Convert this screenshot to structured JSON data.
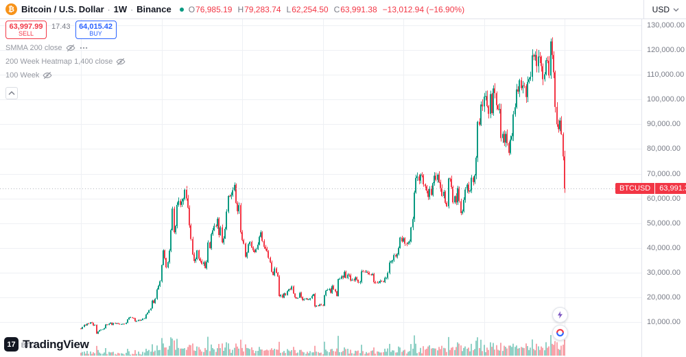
{
  "header": {
    "symbol": "Bitcoin / U.S. Dollar",
    "separator": "·",
    "interval": "1W",
    "exchange": "Binance",
    "ohlc": {
      "open_label": "O",
      "open": "76,985.19",
      "high_label": "H",
      "high": "79,283.74",
      "low_label": "L",
      "low": "62,254.50",
      "close_label": "C",
      "close": "63,991.38",
      "change": "−13,012.94 (−16.90%)"
    },
    "currency": "USD"
  },
  "trade_panel": {
    "sell_price": "63,997.99",
    "sell_label": "SELL",
    "spread": "17.43",
    "buy_price": "64,015.42",
    "buy_label": "BUY"
  },
  "indicators": [
    {
      "label": "SMMA 200 close"
    },
    {
      "label": "200 Week Heatmap 1,400 close"
    },
    {
      "label": "100 Week"
    }
  ],
  "price_axis": {
    "current": {
      "symbol": "BTCUSD",
      "price": "63,991.38"
    },
    "ticks": [
      {
        "value": 130000,
        "label": "130,000.00"
      },
      {
        "value": 120000,
        "label": "120,000.00"
      },
      {
        "value": 110000,
        "label": "110,000.00"
      },
      {
        "value": 100000,
        "label": "100,000.00"
      },
      {
        "value": 90000,
        "label": "90,000.00"
      },
      {
        "value": 80000,
        "label": "80,000.00"
      },
      {
        "value": 70000,
        "label": "70,000.00"
      },
      {
        "value": 60000,
        "label": "60,000.00"
      },
      {
        "value": 50000,
        "label": "50,000.00"
      },
      {
        "value": 40000,
        "label": "40,000.00"
      },
      {
        "value": 30000,
        "label": "30,000.00"
      },
      {
        "value": 20000,
        "label": "20,000.00"
      },
      {
        "value": 10000,
        "label": "10,000.00"
      }
    ]
  },
  "watermark": {
    "logo_mark": "17",
    "logo_text": "TradingView",
    "volume_label": "Vol · BTC"
  },
  "chart_data": {
    "type": "candlestick",
    "title": "BTCUSD · 1W · Binance",
    "interval": "1W",
    "up_color": "#089981",
    "down_color": "#f23645",
    "grid": true,
    "legend_position": "top-left",
    "y_axis": {
      "min": 10000,
      "max": 130000,
      "tick_step": 10000
    },
    "current_price": 63991.38,
    "current_candle": {
      "open": 76985.19,
      "high": 79283.74,
      "low": 62254.5,
      "close": 63991.38
    },
    "weekly_closes": [
      7200,
      8000,
      8900,
      8600,
      9400,
      9300,
      9900,
      9600,
      8600,
      8900,
      5300,
      6200,
      6700,
      6900,
      7100,
      7500,
      9000,
      8800,
      9300,
      9700,
      8800,
      9600,
      9400,
      9500,
      9300,
      9100,
      9200,
      9300,
      9200,
      9700,
      11100,
      11800,
      11900,
      11700,
      11500,
      10300,
      10400,
      10900,
      10700,
      10800,
      11400,
      11500,
      13100,
      13800,
      14800,
      15500,
      18700,
      17700,
      19400,
      23200,
      24700,
      26500,
      33100,
      39000,
      35800,
      32100,
      34300,
      38900,
      47200,
      55900,
      46300,
      48900,
      57400,
      59000,
      57400,
      58800,
      59800,
      63500,
      60000,
      56200,
      49100,
      43600,
      37300,
      34700,
      35500,
      39000,
      35600,
      34700,
      33500,
      34200,
      31800,
      34300,
      42200,
      39900,
      45600,
      47100,
      48900,
      48800,
      51800,
      45200,
      48300,
      42200,
      43800,
      47700,
      54700,
      61000,
      60900,
      61300,
      63300,
      65500,
      58100,
      54800,
      57300,
      46300,
      43100,
      41700,
      36400,
      38200,
      41500,
      42400,
      40100,
      39000,
      38300,
      39400,
      41300,
      44500,
      46300,
      42800,
      40400,
      39700,
      38600,
      36000,
      34100,
      30300,
      29000,
      31700,
      29900,
      28400,
      20500,
      21000,
      19900,
      21600,
      20900,
      22500,
      23300,
      23200,
      24400,
      21500,
      20000,
      19600,
      19800,
      21800,
      20100,
      18900,
      19300,
      19500,
      19100,
      19200,
      19600,
      20600,
      21300,
      16300,
      16700,
      16500,
      17100,
      16800,
      16600,
      20900,
      22700,
      23000,
      23300,
      21800,
      24600,
      23200,
      22400,
      20500,
      27400,
      27500,
      28500,
      28000,
      30300,
      27800,
      29200,
      28900,
      26800,
      27100,
      26900,
      28100,
      27100,
      25900,
      26300,
      30500,
      30400,
      30300,
      30300,
      29900,
      29300,
      29000,
      29400,
      26100,
      26000,
      25900,
      25900,
      26600,
      26500,
      26200,
      27900,
      27900,
      29900,
      34100,
      34500,
      35000,
      37100,
      36500,
      37400,
      40000,
      44200,
      42600,
      43900,
      41700,
      41600,
      42100,
      42600,
      48300,
      51700,
      62400,
      68300,
      68900,
      67200,
      69600,
      69300,
      65700,
      64900,
      63100,
      60600,
      63900,
      61400,
      66200,
      69200,
      67500,
      69600,
      66600,
      64200,
      61000,
      62700,
      58200,
      56800,
      68100,
      67900,
      64600,
      58400,
      60900,
      58400,
      64200,
      58900,
      54100,
      54800,
      59400,
      63600,
      65600,
      62800,
      63200,
      68400,
      66600,
      69300,
      76500,
      91000,
      89800,
      98000,
      97200,
      101200,
      101400,
      97300,
      94200,
      102200,
      94500,
      104500,
      102600,
      97700,
      96100,
      96200,
      84400,
      86100,
      82600,
      86100,
      82400,
      78400,
      83800,
      85200,
      94000,
      96900,
      104100,
      103200,
      107800,
      104600,
      105700,
      105500,
      101000,
      107100,
      108200,
      109200,
      117900,
      117400,
      118000,
      113500,
      117400,
      117300,
      113500,
      108200,
      110200,
      115900,
      115700,
      109700,
      123500,
      118000,
      111000,
      97000,
      90000,
      88000,
      91500,
      86000,
      76985,
      63991
    ]
  }
}
